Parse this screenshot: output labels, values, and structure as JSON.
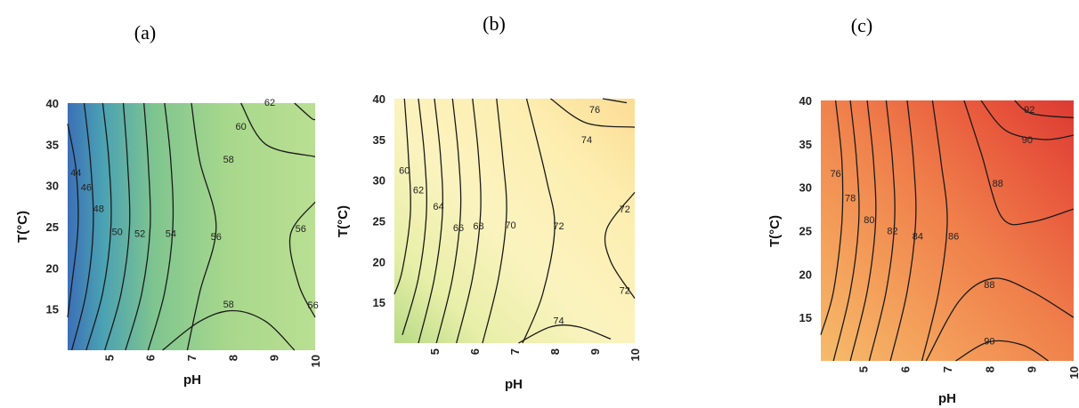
{
  "chart_data": [
    {
      "type": "contour",
      "panel_label": "(a)",
      "xlabel": "pH",
      "ylabel": "T(°C)",
      "xlim": [
        4,
        10
      ],
      "ylim": [
        10,
        40
      ],
      "x_ticks": [
        "5",
        "6",
        "7",
        "8",
        "9",
        "10"
      ],
      "y_ticks": [
        "15",
        "20",
        "25",
        "30",
        "35",
        "40"
      ],
      "colors": [
        "#3c6fb7",
        "#4aa1b3",
        "#7fc58f",
        "#a8d88c",
        "#b9df92"
      ],
      "contour_levels": [
        44,
        46,
        48,
        50,
        52,
        54,
        56,
        58,
        60,
        62
      ],
      "contour_labels": [
        {
          "text": "62",
          "x": 8.9,
          "y": 40.1
        },
        {
          "text": "60",
          "x": 8.2,
          "y": 37.2
        },
        {
          "text": "58",
          "x": 7.9,
          "y": 33.2
        },
        {
          "text": "44",
          "x": 4.2,
          "y": 31.6
        },
        {
          "text": "46",
          "x": 4.45,
          "y": 29.8
        },
        {
          "text": "48",
          "x": 4.75,
          "y": 27.2
        },
        {
          "text": "50",
          "x": 5.2,
          "y": 24.4
        },
        {
          "text": "52",
          "x": 5.75,
          "y": 24.2
        },
        {
          "text": "54",
          "x": 6.5,
          "y": 24.2
        },
        {
          "text": "56",
          "x": 7.6,
          "y": 23.8
        },
        {
          "text": "56",
          "x": 9.65,
          "y": 24.8
        },
        {
          "text": "56",
          "x": 9.95,
          "y": 15.5
        },
        {
          "text": "58",
          "x": 7.9,
          "y": 15.6
        }
      ]
    },
    {
      "type": "contour",
      "panel_label": "(b)",
      "xlabel": "pH",
      "ylabel": "T(°C)",
      "xlim": [
        4,
        10
      ],
      "ylim": [
        10,
        40
      ],
      "x_ticks": [
        "5",
        "6",
        "7",
        "8",
        "9",
        "10"
      ],
      "y_ticks": [
        "15",
        "20",
        "25",
        "30",
        "35",
        "40"
      ],
      "colors": [
        "#b6da86",
        "#e8efa8",
        "#fbf3bf",
        "#fdeeb0",
        "#fbdc94"
      ],
      "contour_levels": [
        60,
        62,
        64,
        66,
        68,
        70,
        72,
        74,
        76
      ],
      "contour_labels": [
        {
          "text": "76",
          "x": 9.0,
          "y": 38.7
        },
        {
          "text": "74",
          "x": 8.8,
          "y": 35.0
        },
        {
          "text": "60",
          "x": 4.25,
          "y": 31.2
        },
        {
          "text": "62",
          "x": 4.6,
          "y": 28.8
        },
        {
          "text": "64",
          "x": 5.1,
          "y": 26.8
        },
        {
          "text": "66",
          "x": 5.6,
          "y": 24.2
        },
        {
          "text": "68",
          "x": 6.1,
          "y": 24.4
        },
        {
          "text": "70",
          "x": 6.9,
          "y": 24.5
        },
        {
          "text": "72",
          "x": 8.1,
          "y": 24.4
        },
        {
          "text": "72",
          "x": 9.75,
          "y": 26.5
        },
        {
          "text": "72",
          "x": 9.75,
          "y": 16.5
        },
        {
          "text": "74",
          "x": 8.1,
          "y": 12.8
        }
      ]
    },
    {
      "type": "contour",
      "panel_label": "(c)",
      "xlabel": "pH",
      "ylabel": "T(°C)",
      "xlim": [
        4,
        10
      ],
      "ylim": [
        10,
        40
      ],
      "x_ticks": [
        "5",
        "6",
        "7",
        "8",
        "9",
        "10"
      ],
      "y_ticks": [
        "15",
        "20",
        "25",
        "30",
        "35",
        "40"
      ],
      "colors": [
        "#f6bb6a",
        "#f39a58",
        "#ef7d4a",
        "#e8583c",
        "#dc3a33"
      ],
      "contour_levels": [
        76,
        78,
        80,
        82,
        84,
        86,
        88,
        90,
        92
      ],
      "contour_labels": [
        {
          "text": "92",
          "x": 8.95,
          "y": 39.0
        },
        {
          "text": "90",
          "x": 8.9,
          "y": 35.5
        },
        {
          "text": "76",
          "x": 4.35,
          "y": 31.6
        },
        {
          "text": "78",
          "x": 4.7,
          "y": 28.8
        },
        {
          "text": "80",
          "x": 5.15,
          "y": 26.3
        },
        {
          "text": "82",
          "x": 5.7,
          "y": 25.0
        },
        {
          "text": "84",
          "x": 6.3,
          "y": 24.4
        },
        {
          "text": "86",
          "x": 7.15,
          "y": 24.4
        },
        {
          "text": "88",
          "x": 8.2,
          "y": 30.5
        },
        {
          "text": "88",
          "x": 8.0,
          "y": 18.8
        },
        {
          "text": "90",
          "x": 8.0,
          "y": 12.3
        }
      ]
    }
  ]
}
